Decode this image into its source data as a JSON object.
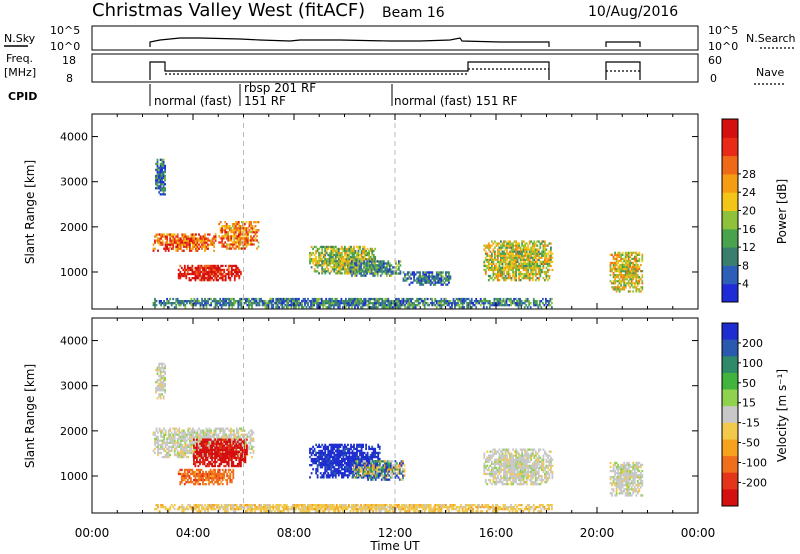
{
  "header": {
    "station": "Christmas Valley West (fitACF)",
    "beam": "Beam 16",
    "date": "10/Aug/2016"
  },
  "top_panels": {
    "nsky_label": "N.Sky",
    "nsky_ticks": [
      "10^5",
      "10^0"
    ],
    "nsearch_label": "N.Search",
    "nsearch_ticks": [
      "10^5",
      "10^0"
    ],
    "freq_label_1": "Freq.",
    "freq_label_2": "[MHz]",
    "freq_ticks": [
      "18",
      "8"
    ],
    "nave_label": "Nave",
    "nave_ticks": [
      "60",
      "0"
    ],
    "cpid_label": "CPID",
    "cpid_segments": [
      {
        "start_h": 2.4,
        "label": "normal (fast)"
      },
      {
        "start_h": 6.0,
        "label": "151 RF"
      },
      {
        "start_h": 6.0,
        "label": "rbsp 201 RF"
      },
      {
        "start_h": 12.0,
        "label": "normal (fast) 151 RF"
      }
    ]
  },
  "chart_data": [
    {
      "type": "heatmap",
      "title": "Power",
      "ylabel": "Slant Range [km]",
      "xlabel": "Time UT",
      "xlim": [
        0,
        24
      ],
      "ylim": [
        180,
        4500
      ],
      "yticks": [
        1000,
        2000,
        3000,
        4000
      ],
      "colorbar": {
        "label": "Power [dB]",
        "ticks": [
          "4",
          "8",
          "12",
          "16",
          "20",
          "24",
          "28"
        ],
        "colors": [
          "#1f2bd6",
          "#2d5fb8",
          "#3a7f6e",
          "#49a24c",
          "#8fc23a",
          "#f2c516",
          "#f59d12",
          "#ef6a16",
          "#e82a16",
          "#d40f0f"
        ]
      },
      "regions": [
        {
          "t0": 2.4,
          "t1": 4.9,
          "r0": 1450,
          "r1": 1850,
          "level": 0.75
        },
        {
          "t0": 3.4,
          "t1": 5.9,
          "r0": 800,
          "r1": 1150,
          "level": 0.95
        },
        {
          "t0": 5.0,
          "t1": 6.6,
          "r0": 1500,
          "r1": 2100,
          "level": 0.7
        },
        {
          "t0": 8.6,
          "t1": 11.3,
          "r0": 950,
          "r1": 1550,
          "level": 0.45
        },
        {
          "t0": 10.2,
          "t1": 12.2,
          "r0": 900,
          "r1": 1250,
          "level": 0.3
        },
        {
          "t0": 12.3,
          "t1": 14.2,
          "r0": 700,
          "r1": 1000,
          "level": 0.2
        },
        {
          "t0": 15.5,
          "t1": 18.2,
          "r0": 800,
          "r1": 1700,
          "level": 0.5
        },
        {
          "t0": 20.5,
          "t1": 21.8,
          "r0": 550,
          "r1": 1450,
          "level": 0.55
        },
        {
          "t0": 2.4,
          "t1": 18.2,
          "r0": 200,
          "r1": 400,
          "level": 0.25
        },
        {
          "t0": 2.5,
          "t1": 2.9,
          "r0": 2700,
          "r1": 3500,
          "level": 0.2
        }
      ]
    },
    {
      "type": "heatmap",
      "title": "Velocity",
      "ylabel": "Slant Range [km]",
      "xlabel": "Time UT",
      "xlim": [
        0,
        24
      ],
      "ylim": [
        180,
        4500
      ],
      "yticks": [
        1000,
        2000,
        3000,
        4000
      ],
      "xticks": [
        "00:00",
        "04:00",
        "08:00",
        "12:00",
        "16:00",
        "20:00",
        "00:00"
      ],
      "colorbar": {
        "label": "Velocity [m s⁻¹]",
        "ticks": [
          "200",
          "100",
          "50",
          "15",
          "-15",
          "-50",
          "-100",
          "-200"
        ],
        "colors": [
          "#1e2dcf",
          "#2a59b0",
          "#2f8a6a",
          "#42b43e",
          "#8fd24d",
          "#c8c8c8",
          "#f2c94a",
          "#f6a21e",
          "#f06f1c",
          "#e4341a",
          "#d40f0f"
        ]
      },
      "regions": [
        {
          "t0": 2.4,
          "t1": 6.4,
          "r0": 1400,
          "r1": 2050,
          "level": "grey"
        },
        {
          "t0": 4.0,
          "t1": 6.1,
          "r0": 1200,
          "r1": 1800,
          "level": "red"
        },
        {
          "t0": 3.4,
          "t1": 5.6,
          "r0": 800,
          "r1": 1150,
          "level": "orange"
        },
        {
          "t0": 8.6,
          "t1": 11.4,
          "r0": 950,
          "r1": 1700,
          "level": "blue"
        },
        {
          "t0": 10.3,
          "t1": 12.4,
          "r0": 900,
          "r1": 1350,
          "level": "mixed"
        },
        {
          "t0": 15.5,
          "t1": 18.2,
          "r0": 800,
          "r1": 1600,
          "level": "grey"
        },
        {
          "t0": 20.5,
          "t1": 21.8,
          "r0": 550,
          "r1": 1300,
          "level": "grey"
        },
        {
          "t0": 2.4,
          "t1": 18.2,
          "r0": 200,
          "r1": 380,
          "level": "yellow"
        },
        {
          "t0": 2.5,
          "t1": 2.9,
          "r0": 2700,
          "r1": 3500,
          "level": "grey"
        }
      ]
    }
  ]
}
